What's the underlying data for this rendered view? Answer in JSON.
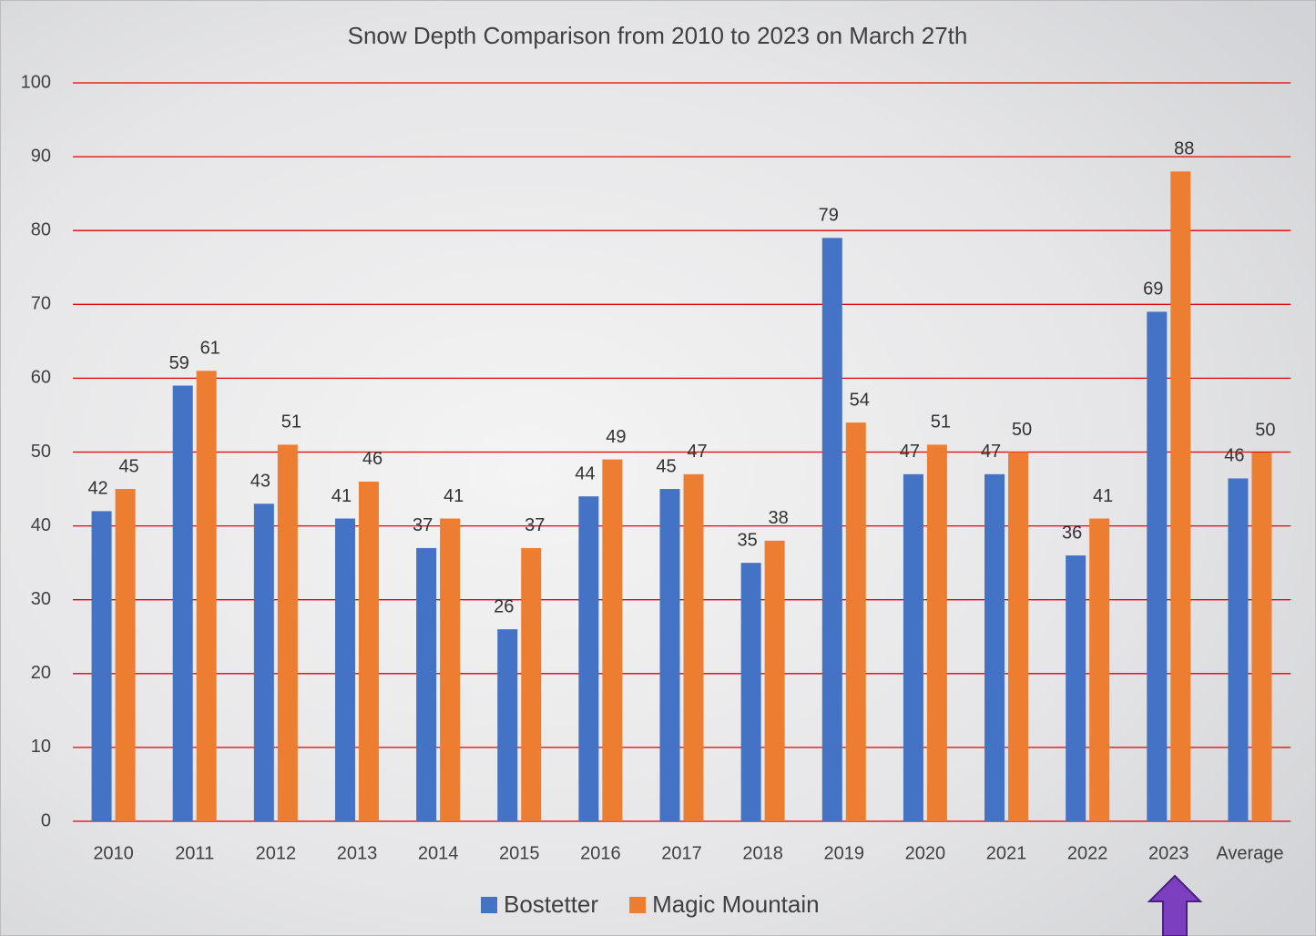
{
  "chart_data": {
    "type": "bar",
    "title": "Snow Depth Comparison from 2010 to 2023 on March 27th",
    "categories": [
      "2010",
      "2011",
      "2012",
      "2013",
      "2014",
      "2015",
      "2016",
      "2017",
      "2018",
      "2019",
      "2020",
      "2021",
      "2022",
      "2023",
      "Average"
    ],
    "series": [
      {
        "name": "Bostetter",
        "color": "#4472c4",
        "values": [
          42,
          59,
          43,
          41,
          37,
          26,
          44,
          45,
          35,
          79,
          47,
          47,
          36,
          69,
          46.43
        ],
        "value_labels": [
          "42",
          "59",
          "43",
          "41",
          "37",
          "26",
          "44",
          "45",
          "35",
          "79",
          "47",
          "47",
          "36",
          "69",
          "46"
        ]
      },
      {
        "name": "Magic Mountain",
        "color": "#ed7d31",
        "values": [
          45,
          61,
          51,
          46,
          41,
          37,
          49,
          47,
          38,
          54,
          51,
          50,
          41,
          88,
          49.93
        ],
        "value_labels": [
          "45",
          "61",
          "51",
          "46",
          "41",
          "37",
          "49",
          "47",
          "38",
          "54",
          "51",
          "50",
          "41",
          "88",
          "50"
        ]
      }
    ],
    "ylim": [
      0,
      100
    ],
    "yticks": [
      0,
      10,
      20,
      30,
      40,
      50,
      60,
      70,
      80,
      90,
      100
    ],
    "grid": true,
    "grid_color": "#e00000",
    "legend": "bottom"
  }
}
